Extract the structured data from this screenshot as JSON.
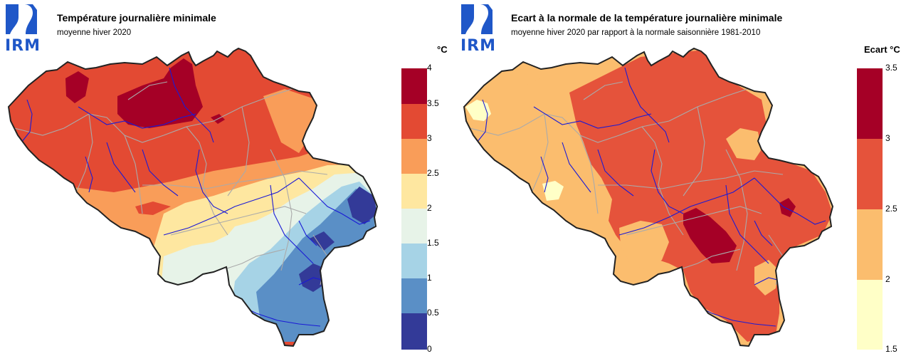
{
  "logo": {
    "text": "IRM",
    "color": "#1f57c8"
  },
  "left_panel": {
    "title": "Température journalière minimale",
    "subtitle": "moyenne hiver 2020",
    "unit": "°C",
    "legend": {
      "ticks": [
        "4",
        "3.5",
        "3",
        "2.5",
        "2",
        "1.5",
        "1",
        "0.5",
        "0"
      ],
      "colors": [
        "#a50026",
        "#e34a33",
        "#f99d59",
        "#fee7a0",
        "#e7f3e8",
        "#a6d3e6",
        "#5a8fc6",
        "#333a98"
      ]
    }
  },
  "right_panel": {
    "title": "Ecart à la normale de la température journalière minimale",
    "subtitle": "moyenne hiver 2020 par rapport à la normale saisonnière 1981-2010",
    "unit": "Ecart °C",
    "legend": {
      "ticks": [
        "3.5",
        "3",
        "2.5",
        "2",
        "1.5"
      ],
      "colors": [
        "#a50026",
        "#e5533b",
        "#fbbd6e",
        "#ffffc7"
      ]
    }
  },
  "map_colors": {
    "outline": "#222222",
    "admin_borders": "#aaaaaa",
    "rivers": "#1a1ad6"
  }
}
